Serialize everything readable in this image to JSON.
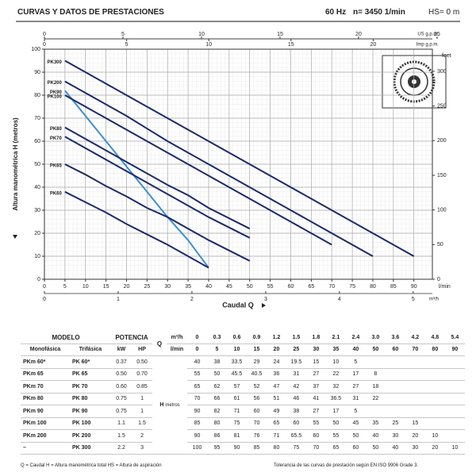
{
  "header": {
    "title": "CURVAS Y DATOS DE PRESTACIONES",
    "frequency": "60 Hz",
    "speed": "n= 3450 1/min",
    "suction": "HS= 0 m"
  },
  "chart_data": {
    "type": "line",
    "x_label": "Caudal Q",
    "x_unit": "l/min",
    "y_label": "Altura manométrica H (metros)",
    "x": [
      5,
      10,
      15,
      20,
      25,
      30,
      35,
      40,
      50,
      60,
      70,
      80,
      90
    ],
    "xlim": [
      0,
      94.5
    ],
    "xticks": [
      0,
      5,
      10,
      15,
      20,
      25,
      30,
      35,
      40,
      45,
      50,
      55,
      60,
      65,
      70,
      75,
      80,
      85,
      90
    ],
    "ylim": [
      0,
      100
    ],
    "yticks": [
      0,
      10,
      20,
      30,
      40,
      50,
      60,
      70,
      80,
      90,
      100
    ],
    "y2_label": "feet",
    "y2lim": [
      0,
      332
    ],
    "y2ticks": [
      0,
      50,
      100,
      150,
      200,
      250,
      300
    ],
    "x_top": {
      "label": "US g.p.m.",
      "lim": [
        0,
        24.7
      ],
      "ticks": [
        0,
        5,
        10,
        15,
        20,
        25
      ]
    },
    "x_top2": {
      "label": "Imp g.p.m.",
      "lim": [
        0,
        23.6
      ],
      "ticks": [
        0,
        5,
        10,
        15,
        20
      ]
    },
    "x_bottom2": {
      "label": "m³/h",
      "lim": [
        0,
        5.26
      ],
      "ticks": [
        0,
        1,
        2,
        3,
        4,
        5
      ]
    },
    "grid": true,
    "series": [
      {
        "name": "PK300",
        "color": "#1b2a6b",
        "values": [
          95,
          90,
          85,
          80,
          75,
          70,
          65,
          60,
          50,
          40,
          30,
          20,
          10
        ]
      },
      {
        "name": "PK200",
        "color": "#1b2a6b",
        "values": [
          86,
          81,
          76,
          71,
          65.5,
          60,
          55,
          50,
          40,
          30,
          20,
          10,
          null
        ]
      },
      {
        "name": "PK90",
        "color": "#3a8fd0",
        "values": [
          82,
          71,
          60,
          49,
          38,
          27,
          17,
          5,
          null,
          null,
          null,
          null,
          null
        ]
      },
      {
        "name": "PK100",
        "color": "#1b2a6b",
        "values": [
          80,
          75,
          70,
          65,
          60,
          55,
          50,
          45,
          35,
          25,
          15,
          null,
          null
        ]
      },
      {
        "name": "PK80",
        "color": "#1b2a6b",
        "values": [
          66,
          61,
          56,
          51,
          46,
          41,
          36.5,
          31,
          22,
          null,
          null,
          null,
          null
        ]
      },
      {
        "name": "PK70",
        "color": "#1b2a6b",
        "values": [
          62,
          57,
          52,
          47,
          42,
          37,
          32,
          27,
          18,
          null,
          null,
          null,
          null
        ]
      },
      {
        "name": "PK65",
        "color": "#1b2a6b",
        "values": [
          50,
          45.5,
          40.5,
          36,
          31,
          27,
          22,
          17,
          8,
          null,
          null,
          null,
          null
        ]
      },
      {
        "name": "PK60",
        "color": "#1b2a6b",
        "values": [
          38,
          33.5,
          29,
          24,
          19.5,
          15,
          10,
          5,
          null,
          null,
          null,
          null,
          null
        ]
      }
    ]
  },
  "table": {
    "model": "MODELO",
    "power": "POTENCIA",
    "mono": "Monofásica",
    "tri": "Trifásica",
    "kw": "kW",
    "hp": "HP",
    "q": "Q",
    "m3h": "m³/h",
    "lmin": "l/min",
    "h": "H",
    "h_unit": "metros",
    "flow_m3h": [
      "0",
      "0.3",
      "0.6",
      "0.9",
      "1.2",
      "1.5",
      "1.8",
      "2.1",
      "2.4",
      "3.0",
      "3.6",
      "4.2",
      "4.8",
      "5.4"
    ],
    "flow_lmin": [
      "0",
      "5",
      "10",
      "15",
      "20",
      "25",
      "30",
      "35",
      "40",
      "50",
      "60",
      "70",
      "80",
      "90"
    ],
    "rows": [
      {
        "mono": "PKm 60*",
        "tri": "PK 60*",
        "kw": "0.37",
        "hp": "0.50",
        "h": [
          "40",
          "38",
          "33.5",
          "29",
          "24",
          "19.5",
          "15",
          "10",
          "5"
        ]
      },
      {
        "mono": "PKm 65",
        "tri": "PK 65",
        "kw": "0.50",
        "hp": "0.70",
        "h": [
          "55",
          "50",
          "45.5",
          "40.5",
          "36",
          "31",
          "27",
          "22",
          "17",
          "8"
        ]
      },
      {
        "mono": "PKm 70",
        "tri": "PK 70",
        "kw": "0.60",
        "hp": "0.85",
        "h": [
          "65",
          "62",
          "57",
          "52",
          "47",
          "42",
          "37",
          "32",
          "27",
          "18"
        ]
      },
      {
        "mono": "PKm 80",
        "tri": "PK 80",
        "kw": "0.75",
        "hp": "1",
        "h": [
          "70",
          "66",
          "61",
          "56",
          "51",
          "46",
          "41",
          "36.5",
          "31",
          "22"
        ]
      },
      {
        "mono": "PKm 90",
        "tri": "PK 90",
        "kw": "0.75",
        "hp": "1",
        "h": [
          "90",
          "82",
          "71",
          "60",
          "49",
          "38",
          "27",
          "17",
          "5"
        ]
      },
      {
        "mono": "PKm 100",
        "tri": "PK 100",
        "kw": "1.1",
        "hp": "1.5",
        "h": [
          "85",
          "80",
          "75",
          "70",
          "65",
          "60",
          "55",
          "50",
          "45",
          "35",
          "25",
          "15"
        ]
      },
      {
        "mono": "PKm 200",
        "tri": "PK 200",
        "kw": "1.5",
        "hp": "2",
        "h": [
          "90",
          "86",
          "81",
          "76",
          "71",
          "65.5",
          "60",
          "55",
          "50",
          "40",
          "30",
          "20",
          "10"
        ]
      },
      {
        "mono": "–",
        "tri": "PK 300",
        "kw": "2.2",
        "hp": "3",
        "h": [
          "100",
          "95",
          "90",
          "85",
          "80",
          "75",
          "70",
          "65",
          "60",
          "50",
          "40",
          "30",
          "20",
          "10"
        ]
      }
    ]
  },
  "notes": [
    "Q = Caudal   H = Altura manométrica total   HS = Altura de aspiración",
    "Tolerancia de las curvas de prestación según EN ISO 9906 Grade 3."
  ]
}
